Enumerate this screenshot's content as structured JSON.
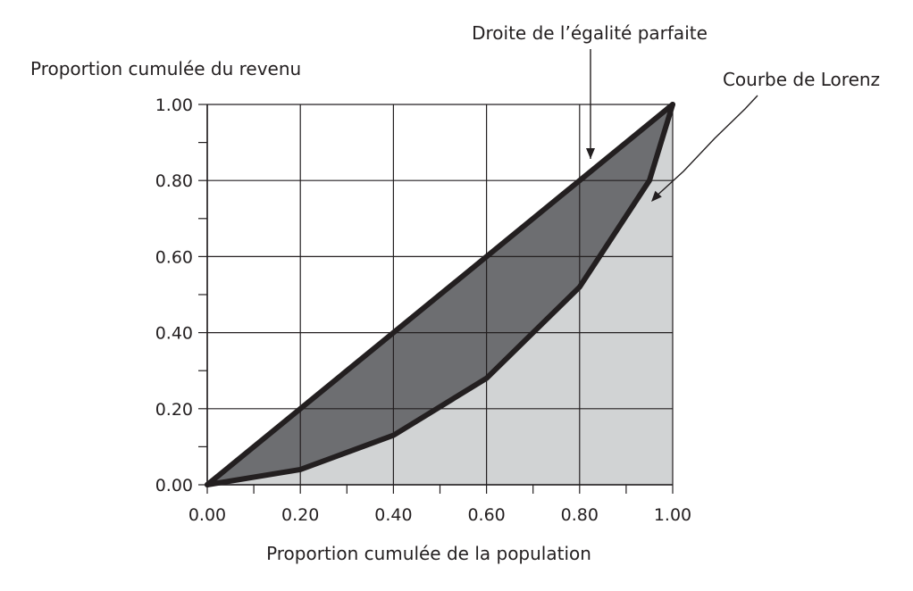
{
  "chart_data": {
    "type": "line",
    "title": "",
    "xlabel": "Proportion cumulée de la population",
    "ylabel": "Proportion cumulée du revenu",
    "xlim": [
      0,
      1
    ],
    "ylim": [
      0,
      1
    ],
    "x_ticks": [
      "0.00",
      "0.20",
      "0.40",
      "0.60",
      "0.80",
      "1.00"
    ],
    "y_ticks": [
      "0.00",
      "0.20",
      "0.40",
      "0.60",
      "0.80",
      "1.00"
    ],
    "grid": true,
    "series": [
      {
        "name": "Droite de l’égalité parfaite",
        "x": [
          0,
          1
        ],
        "y": [
          0,
          1
        ]
      },
      {
        "name": "Courbe de Lorenz",
        "x": [
          0,
          0.2,
          0.4,
          0.6,
          0.8,
          0.95,
          1
        ],
        "y": [
          0,
          0.04,
          0.13,
          0.28,
          0.52,
          0.8,
          1
        ]
      }
    ],
    "annotations": [
      {
        "text": "Droite de l’égalité parfaite",
        "target_series": 0
      },
      {
        "text": "Courbe de Lorenz",
        "target_series": 1
      }
    ],
    "colors": {
      "fill_inequality": "#6d6e71",
      "fill_below": "#d1d3d4",
      "line": "#231f20",
      "grid": "#231f20"
    }
  }
}
